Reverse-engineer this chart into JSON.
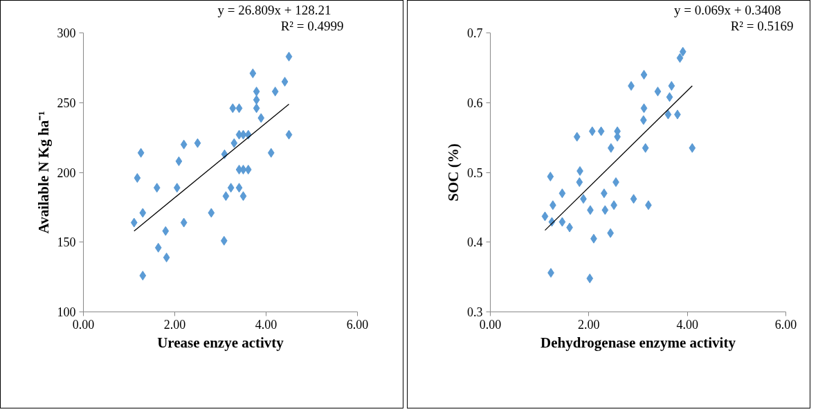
{
  "chart_data": [
    {
      "type": "scatter",
      "xlabel": "Urease enzye activty",
      "ylabel": "Available N Kg ha⁻¹",
      "annotations": [
        "y = 26.809x + 128.21",
        "R² = 0.4999"
      ],
      "xlim": [
        0,
        6
      ],
      "xticks": [
        {
          "value": 0,
          "label": "0.00"
        },
        {
          "value": 2,
          "label": "2.00"
        },
        {
          "value": 4,
          "label": "4.00"
        },
        {
          "value": 6,
          "label": "6.00"
        }
      ],
      "ylim": [
        100,
        300
      ],
      "yticks": [
        100,
        150,
        200,
        250,
        300
      ],
      "grid": false,
      "series": [
        {
          "type": "scatter",
          "marker": "diamond",
          "color": "#5b9bd5",
          "x": [
            1.11,
            1.18,
            1.26,
            1.3,
            1.3,
            1.61,
            1.64,
            1.8,
            1.82,
            2.05,
            2.09,
            2.2,
            2.2,
            2.5,
            2.8,
            3.09,
            3.08,
            3.12,
            3.23,
            3.27,
            3.3,
            3.41,
            3.41,
            3.5,
            3.61,
            3.41,
            3.5,
            3.61,
            3.41,
            3.5,
            3.71,
            3.79,
            3.79,
            3.79,
            3.89,
            4.2,
            4.41,
            4.5,
            4.5,
            4.11
          ],
          "values": [
            164,
            196,
            214,
            171,
            126,
            189,
            146,
            158,
            139,
            189,
            208,
            220,
            164,
            221,
            171,
            213,
            151,
            183,
            189,
            246,
            221,
            246,
            227,
            227,
            227,
            202,
            202,
            202,
            189,
            183,
            271,
            258,
            252,
            246,
            239,
            258,
            265,
            283,
            227,
            214
          ]
        },
        {
          "type": "line",
          "marker": "none",
          "color": "#000000",
          "x": [
            1.11,
            4.5
          ],
          "values": [
            158.0,
            248.9
          ]
        }
      ]
    },
    {
      "type": "scatter",
      "xlabel": "Dehydrogenase enzyme activity",
      "ylabel": "SOC (%)",
      "annotations": [
        "y = 0.069x + 0.3408",
        "R² = 0.5169"
      ],
      "xlim": [
        0,
        6
      ],
      "xticks": [
        {
          "value": 0,
          "label": "0.00"
        },
        {
          "value": 2,
          "label": "2.00"
        },
        {
          "value": 4,
          "label": "4.00"
        },
        {
          "value": 6,
          "label": "6.00"
        }
      ],
      "ylim": [
        0.3,
        0.7
      ],
      "yticks": [
        0.3,
        0.4,
        0.5,
        0.6,
        0.7
      ],
      "grid": false,
      "series": [
        {
          "type": "scatter",
          "marker": "diamond",
          "color": "#5b9bd5",
          "x": [
            3.91,
            3.85,
            3.12,
            2.86,
            3.68,
            3.4,
            3.64,
            3.12,
            3.61,
            3.8,
            3.11,
            2.07,
            2.25,
            2.58,
            2.58,
            1.76,
            2.45,
            3.15,
            4.1,
            1.82,
            1.22,
            1.81,
            2.55,
            1.46,
            2.31,
            1.89,
            2.91,
            1.27,
            2.51,
            3.21,
            2.03,
            2.33,
            1.11,
            1.25,
            1.46,
            1.61,
            2.44,
            2.1,
            1.23,
            2.02
          ],
          "values": [
            0.673,
            0.664,
            0.64,
            0.624,
            0.624,
            0.616,
            0.608,
            0.592,
            0.583,
            0.583,
            0.575,
            0.559,
            0.559,
            0.559,
            0.551,
            0.551,
            0.535,
            0.535,
            0.535,
            0.502,
            0.494,
            0.486,
            0.486,
            0.47,
            0.47,
            0.462,
            0.462,
            0.453,
            0.453,
            0.453,
            0.446,
            0.446,
            0.437,
            0.429,
            0.429,
            0.421,
            0.413,
            0.405,
            0.356,
            0.348
          ]
        },
        {
          "type": "line",
          "marker": "none",
          "color": "#000000",
          "x": [
            1.11,
            4.1
          ],
          "values": [
            0.417,
            0.624
          ]
        }
      ]
    }
  ]
}
